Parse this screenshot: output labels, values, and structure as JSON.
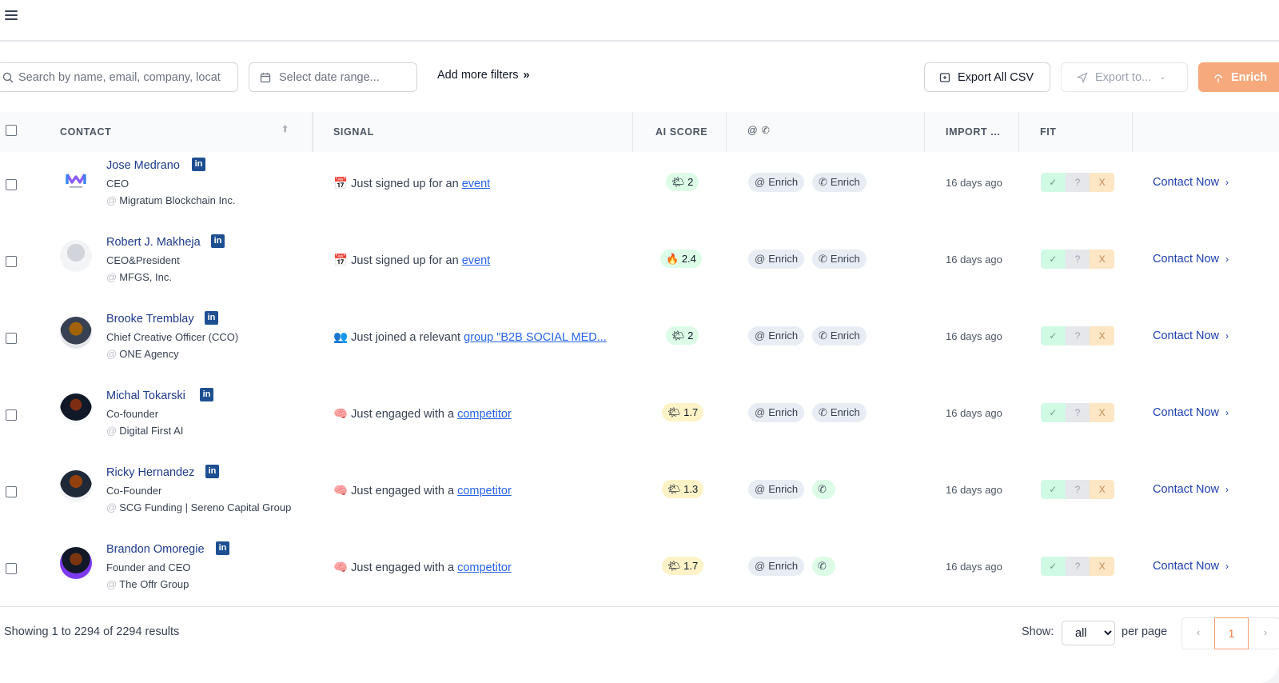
{
  "toolbar": {
    "search_placeholder": "Search by name, email, company, locat",
    "date_placeholder": "Select date range...",
    "add_filters_label": "Add more filters",
    "add_filters_chevron": "»",
    "export_all_label": "Export All CSV",
    "export_to_label": "Export to...",
    "enrich_label": "Enrich"
  },
  "columns": {
    "contact": "CONTACT",
    "signal": "SIGNAL",
    "ai_score": "AI SCORE",
    "channels": "@ ✆",
    "import": "IMPORT ...",
    "fit": "FIT"
  },
  "row_labels": {
    "linkedin": "in",
    "enrich": "Enrich",
    "contact_now": "Contact Now",
    "fit_yes": "✓",
    "fit_maybe": "?",
    "fit_no": "X"
  },
  "rows": [
    {
      "name": "Jose Medrano",
      "title": "CEO",
      "company": "Migratum Blockchain Inc.",
      "signal_emoji": "📅",
      "signal_text": "Just signed up for an ",
      "signal_link": "event",
      "score_icon": "🌤",
      "score": "2",
      "score_color": "green",
      "phone_enrich": true,
      "imported": "16 days ago"
    },
    {
      "name": "Robert J. Makheja",
      "title": "CEO&President",
      "company": "MFGS, Inc.",
      "signal_emoji": "📅",
      "signal_text": "Just signed up for an ",
      "signal_link": "event",
      "score_icon": "🔥",
      "score": "2.4",
      "score_color": "green",
      "phone_enrich": true,
      "imported": "16 days ago"
    },
    {
      "name": "Brooke Tremblay",
      "title": "Chief Creative Officer (CCO)",
      "company": "ONE Agency",
      "signal_emoji": "👥",
      "signal_text": "Just joined a relevant ",
      "signal_link": "group \"B2B SOCIAL MED...",
      "score_icon": "🌤",
      "score": "2",
      "score_color": "green",
      "phone_enrich": true,
      "imported": "16 days ago"
    },
    {
      "name": "Michal Tokarski",
      "title": "Co-founder",
      "company": "Digital First AI",
      "signal_emoji": "🧠",
      "signal_text": "Just engaged with a ",
      "signal_link": "competitor",
      "score_icon": "🌤",
      "score": "1.7",
      "score_color": "yellow",
      "phone_enrich": true,
      "imported": "16 days ago"
    },
    {
      "name": "Ricky Hernandez",
      "title": "Co-Founder",
      "company": "SCG Funding | Sereno Capital Group",
      "signal_emoji": "🧠",
      "signal_text": "Just engaged with a ",
      "signal_link": "competitor",
      "score_icon": "🌤",
      "score": "1.3",
      "score_color": "yellow",
      "phone_enrich": false,
      "imported": "16 days ago"
    },
    {
      "name": "Brandon Omoregie",
      "title": "Founder and CEO",
      "company": "The Offr Group",
      "signal_emoji": "🧠",
      "signal_text": "Just engaged with a ",
      "signal_link": "competitor",
      "score_icon": "🌤",
      "score": "1.7",
      "score_color": "yellow",
      "phone_enrich": false,
      "imported": "16 days ago"
    }
  ],
  "footer": {
    "showing": "Showing 1 to 2294 of 2294 results",
    "show_label": "Show:",
    "per_page_value": "all",
    "per_page_label": "per page",
    "current_page": "1"
  },
  "colors": {
    "accent": "#f5a97c",
    "link": "#1e3a8a",
    "linkedin": "#1d4f91"
  }
}
